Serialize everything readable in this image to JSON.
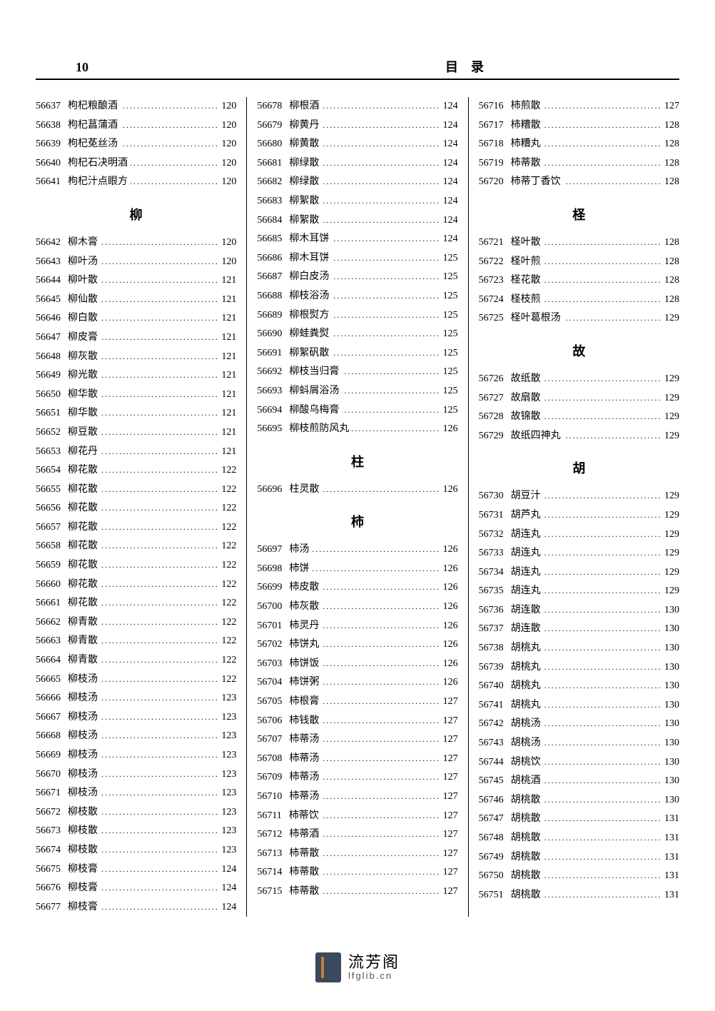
{
  "page_number": "10",
  "header_title": "目录",
  "footer": {
    "main": "流芳阁",
    "sub": "lfglib.cn"
  },
  "columns": [
    {
      "blocks": [
        {
          "type": "entries",
          "items": [
            {
              "id": "56637",
              "name": "枸杞粮酿酒",
              "page": "120"
            },
            {
              "id": "56638",
              "name": "枸杞菖蒲酒",
              "page": "120"
            },
            {
              "id": "56639",
              "name": "枸杞莬丝汤",
              "page": "120"
            },
            {
              "id": "56640",
              "name": "枸杞石决明酒",
              "page": "120"
            },
            {
              "id": "56641",
              "name": "枸杞汁点眼方",
              "page": "120"
            }
          ]
        },
        {
          "type": "heading",
          "text": "柳"
        },
        {
          "type": "entries",
          "items": [
            {
              "id": "56642",
              "name": "柳木膏",
              "page": "120"
            },
            {
              "id": "56643",
              "name": "柳叶汤",
              "page": "120"
            },
            {
              "id": "56644",
              "name": "柳叶散",
              "page": "121"
            },
            {
              "id": "56645",
              "name": "柳仙散",
              "page": "121"
            },
            {
              "id": "56646",
              "name": "柳白散",
              "page": "121"
            },
            {
              "id": "56647",
              "name": "柳皮膏",
              "page": "121"
            },
            {
              "id": "56648",
              "name": "柳灰散",
              "page": "121"
            },
            {
              "id": "56649",
              "name": "柳光散",
              "page": "121"
            },
            {
              "id": "56650",
              "name": "柳华散",
              "page": "121"
            },
            {
              "id": "56651",
              "name": "柳华散",
              "page": "121"
            },
            {
              "id": "56652",
              "name": "柳豆散",
              "page": "121"
            },
            {
              "id": "56653",
              "name": "柳花丹",
              "page": "121"
            },
            {
              "id": "56654",
              "name": "柳花散",
              "page": "122"
            },
            {
              "id": "56655",
              "name": "柳花散",
              "page": "122"
            },
            {
              "id": "56656",
              "name": "柳花散",
              "page": "122"
            },
            {
              "id": "56657",
              "name": "柳花散",
              "page": "122"
            },
            {
              "id": "56658",
              "name": "柳花散",
              "page": "122"
            },
            {
              "id": "56659",
              "name": "柳花散",
              "page": "122"
            },
            {
              "id": "56660",
              "name": "柳花散",
              "page": "122"
            },
            {
              "id": "56661",
              "name": "柳花散",
              "page": "122"
            },
            {
              "id": "56662",
              "name": "柳青散",
              "page": "122"
            },
            {
              "id": "56663",
              "name": "柳青散",
              "page": "122"
            },
            {
              "id": "56664",
              "name": "柳青散",
              "page": "122"
            },
            {
              "id": "56665",
              "name": "柳枝汤",
              "page": "122"
            },
            {
              "id": "56666",
              "name": "柳枝汤",
              "page": "123"
            },
            {
              "id": "56667",
              "name": "柳枝汤",
              "page": "123"
            },
            {
              "id": "56668",
              "name": "柳枝汤",
              "page": "123"
            },
            {
              "id": "56669",
              "name": "柳枝汤",
              "page": "123"
            },
            {
              "id": "56670",
              "name": "柳枝汤",
              "page": "123"
            },
            {
              "id": "56671",
              "name": "柳枝汤",
              "page": "123"
            },
            {
              "id": "56672",
              "name": "柳枝散",
              "page": "123"
            },
            {
              "id": "56673",
              "name": "柳枝散",
              "page": "123"
            },
            {
              "id": "56674",
              "name": "柳枝散",
              "page": "123"
            },
            {
              "id": "56675",
              "name": "柳枝膏",
              "page": "124"
            },
            {
              "id": "56676",
              "name": "柳枝膏",
              "page": "124"
            },
            {
              "id": "56677",
              "name": "柳枝膏",
              "page": "124"
            }
          ]
        }
      ]
    },
    {
      "blocks": [
        {
          "type": "entries",
          "items": [
            {
              "id": "56678",
              "name": "柳根酒",
              "page": "124"
            },
            {
              "id": "56679",
              "name": "柳黄丹",
              "page": "124"
            },
            {
              "id": "56680",
              "name": "柳黄散",
              "page": "124"
            },
            {
              "id": "56681",
              "name": "柳绿散",
              "page": "124"
            },
            {
              "id": "56682",
              "name": "柳绿散",
              "page": "124"
            },
            {
              "id": "56683",
              "name": "柳絮散",
              "page": "124"
            },
            {
              "id": "56684",
              "name": "柳絮散",
              "page": "124"
            },
            {
              "id": "56685",
              "name": "柳木耳饼",
              "page": "124"
            },
            {
              "id": "56686",
              "name": "柳木耳饼",
              "page": "125"
            },
            {
              "id": "56687",
              "name": "柳白皮汤",
              "page": "125"
            },
            {
              "id": "56688",
              "name": "柳枝浴汤",
              "page": "125"
            },
            {
              "id": "56689",
              "name": "柳根熨方",
              "page": "125"
            },
            {
              "id": "56690",
              "name": "柳蛙粪熨",
              "page": "125"
            },
            {
              "id": "56691",
              "name": "柳絮矾散",
              "page": "125"
            },
            {
              "id": "56692",
              "name": "柳枝当归膏",
              "page": "125"
            },
            {
              "id": "56693",
              "name": "柳蚪屑浴汤",
              "page": "125"
            },
            {
              "id": "56694",
              "name": "柳酸乌梅膏",
              "page": "125"
            },
            {
              "id": "56695",
              "name": "柳枝煎防风丸",
              "page": "126"
            }
          ]
        },
        {
          "type": "heading",
          "text": "柱"
        },
        {
          "type": "entries",
          "items": [
            {
              "id": "56696",
              "name": "柱灵散",
              "page": "126"
            }
          ]
        },
        {
          "type": "heading",
          "text": "柿"
        },
        {
          "type": "entries",
          "items": [
            {
              "id": "56697",
              "name": "柿汤",
              "page": "126"
            },
            {
              "id": "56698",
              "name": "柿饼",
              "page": "126"
            },
            {
              "id": "56699",
              "name": "柿皮散",
              "page": "126"
            },
            {
              "id": "56700",
              "name": "柿灰散",
              "page": "126"
            },
            {
              "id": "56701",
              "name": "柿灵丹",
              "page": "126"
            },
            {
              "id": "56702",
              "name": "柿饼丸",
              "page": "126"
            },
            {
              "id": "56703",
              "name": "柿饼饭",
              "page": "126"
            },
            {
              "id": "56704",
              "name": "柿饼粥",
              "page": "126"
            },
            {
              "id": "56705",
              "name": "柿根膏",
              "page": "127"
            },
            {
              "id": "56706",
              "name": "柿钱散",
              "page": "127"
            },
            {
              "id": "56707",
              "name": "柿蒂汤",
              "page": "127"
            },
            {
              "id": "56708",
              "name": "柿蒂汤",
              "page": "127"
            },
            {
              "id": "56709",
              "name": "柿蒂汤",
              "page": "127"
            },
            {
              "id": "56710",
              "name": "柿蒂汤",
              "page": "127"
            },
            {
              "id": "56711",
              "name": "柿蒂饮",
              "page": "127"
            },
            {
              "id": "56712",
              "name": "柿蒂酒",
              "page": "127"
            },
            {
              "id": "56713",
              "name": "柿蒂散",
              "page": "127"
            },
            {
              "id": "56714",
              "name": "柿蒂散",
              "page": "127"
            },
            {
              "id": "56715",
              "name": "柿蒂散",
              "page": "127"
            }
          ]
        }
      ]
    },
    {
      "blocks": [
        {
          "type": "entries",
          "items": [
            {
              "id": "56716",
              "name": "柿煎散",
              "page": "127"
            },
            {
              "id": "56717",
              "name": "柿糟散",
              "page": "128"
            },
            {
              "id": "56718",
              "name": "柿糟丸",
              "page": "128"
            },
            {
              "id": "56719",
              "name": "柿蒂散",
              "page": "128"
            },
            {
              "id": "56720",
              "name": "柿蒂丁香饮",
              "page": "128"
            }
          ]
        },
        {
          "type": "heading",
          "text": "柽"
        },
        {
          "type": "entries",
          "items": [
            {
              "id": "56721",
              "name": "柽叶散",
              "page": "128"
            },
            {
              "id": "56722",
              "name": "柽叶煎",
              "page": "128"
            },
            {
              "id": "56723",
              "name": "柽花散",
              "page": "128"
            },
            {
              "id": "56724",
              "name": "柽枝煎",
              "page": "128"
            },
            {
              "id": "56725",
              "name": "柽叶葛根汤",
              "page": "129"
            }
          ]
        },
        {
          "type": "heading",
          "text": "故"
        },
        {
          "type": "entries",
          "items": [
            {
              "id": "56726",
              "name": "故纸散",
              "page": "129"
            },
            {
              "id": "56727",
              "name": "故扇散",
              "page": "129"
            },
            {
              "id": "56728",
              "name": "故锦散",
              "page": "129"
            },
            {
              "id": "56729",
              "name": "故纸四神丸",
              "page": "129"
            }
          ]
        },
        {
          "type": "heading",
          "text": "胡"
        },
        {
          "type": "entries",
          "items": [
            {
              "id": "56730",
              "name": "胡豆汁",
              "page": "129"
            },
            {
              "id": "56731",
              "name": "胡芦丸",
              "page": "129"
            },
            {
              "id": "56732",
              "name": "胡连丸",
              "page": "129"
            },
            {
              "id": "56733",
              "name": "胡连丸",
              "page": "129"
            },
            {
              "id": "56734",
              "name": "胡连丸",
              "page": "129"
            },
            {
              "id": "56735",
              "name": "胡连丸",
              "page": "129"
            },
            {
              "id": "56736",
              "name": "胡连散",
              "page": "130"
            },
            {
              "id": "56737",
              "name": "胡连散",
              "page": "130"
            },
            {
              "id": "56738",
              "name": "胡桃丸",
              "page": "130"
            },
            {
              "id": "56739",
              "name": "胡桃丸",
              "page": "130"
            },
            {
              "id": "56740",
              "name": "胡桃丸",
              "page": "130"
            },
            {
              "id": "56741",
              "name": "胡桃丸",
              "page": "130"
            },
            {
              "id": "56742",
              "name": "胡桃汤",
              "page": "130"
            },
            {
              "id": "56743",
              "name": "胡桃汤",
              "page": "130"
            },
            {
              "id": "56744",
              "name": "胡桃饮",
              "page": "130"
            },
            {
              "id": "56745",
              "name": "胡桃酒",
              "page": "130"
            },
            {
              "id": "56746",
              "name": "胡桃散",
              "page": "130"
            },
            {
              "id": "56747",
              "name": "胡桃散",
              "page": "131"
            },
            {
              "id": "56748",
              "name": "胡桃散",
              "page": "131"
            },
            {
              "id": "56749",
              "name": "胡桃散",
              "page": "131"
            },
            {
              "id": "56750",
              "name": "胡桃散",
              "page": "131"
            },
            {
              "id": "56751",
              "name": "胡桃散",
              "page": "131"
            }
          ]
        }
      ]
    }
  ]
}
